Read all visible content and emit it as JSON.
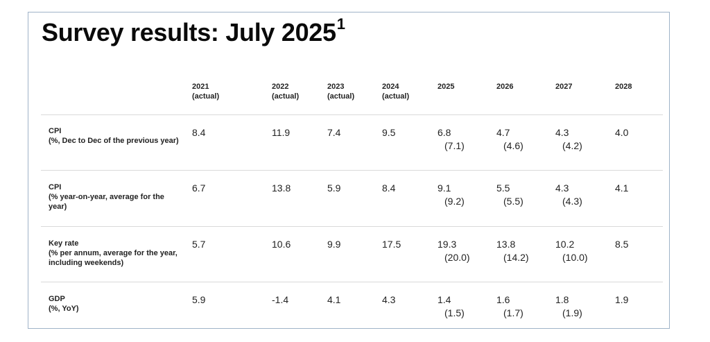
{
  "title": {
    "text": "Survey results: July 2025",
    "footnote": "1"
  },
  "columns": [
    {
      "year": "2021",
      "sub": "(actual)"
    },
    {
      "year": "2022",
      "sub": "(actual)"
    },
    {
      "year": "2023",
      "sub": "(actual)"
    },
    {
      "year": "2024",
      "sub": "(actual)"
    },
    {
      "year": "2025",
      "sub": ""
    },
    {
      "year": "2026",
      "sub": ""
    },
    {
      "year": "2027",
      "sub": ""
    },
    {
      "year": "2028",
      "sub": ""
    }
  ],
  "rows": [
    {
      "name": "CPI",
      "desc": "(%, Dec to Dec of the previous year)",
      "values": [
        {
          "v": "8.4",
          "p": ""
        },
        {
          "v": "11.9",
          "p": ""
        },
        {
          "v": "7.4",
          "p": ""
        },
        {
          "v": "9.5",
          "p": ""
        },
        {
          "v": "6.8",
          "p": "(7.1)"
        },
        {
          "v": "4.7",
          "p": "(4.6)"
        },
        {
          "v": "4.3",
          "p": "(4.2)"
        },
        {
          "v": "4.0",
          "p": ""
        }
      ]
    },
    {
      "name": "CPI",
      "desc": "(% year-on-year, average for the year)",
      "values": [
        {
          "v": "6.7",
          "p": ""
        },
        {
          "v": "13.8",
          "p": ""
        },
        {
          "v": "5.9",
          "p": ""
        },
        {
          "v": "8.4",
          "p": ""
        },
        {
          "v": "9.1",
          "p": "(9.2)"
        },
        {
          "v": "5.5",
          "p": "(5.5)"
        },
        {
          "v": "4.3",
          "p": "(4.3)"
        },
        {
          "v": "4.1",
          "p": ""
        }
      ]
    },
    {
      "name": "Key rate",
      "desc": "(% per annum, average for the year, including weekends)",
      "values": [
        {
          "v": "5.7",
          "p": ""
        },
        {
          "v": "10.6",
          "p": ""
        },
        {
          "v": "9.9",
          "p": ""
        },
        {
          "v": "17.5",
          "p": ""
        },
        {
          "v": "19.3",
          "p": "(20.0)"
        },
        {
          "v": "13.8",
          "p": "(14.2)"
        },
        {
          "v": "10.2",
          "p": "(10.0)"
        },
        {
          "v": "8.5",
          "p": ""
        }
      ]
    },
    {
      "name": "GDP",
      "desc": "(%, YoY)",
      "values": [
        {
          "v": "5.9",
          "p": ""
        },
        {
          "v": "-1.4",
          "p": ""
        },
        {
          "v": "4.1",
          "p": ""
        },
        {
          "v": "4.3",
          "p": ""
        },
        {
          "v": "1.4",
          "p": "(1.5)"
        },
        {
          "v": "1.6",
          "p": "(1.7)"
        },
        {
          "v": "1.8",
          "p": "(1.9)"
        },
        {
          "v": "1.9",
          "p": ""
        }
      ]
    }
  ]
}
